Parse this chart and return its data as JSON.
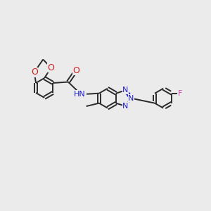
{
  "background_color": "#ebebeb",
  "bond_color": "#2a2a2a",
  "bond_width": 1.4,
  "atom_colors": {
    "N": "#2020cc",
    "O": "#cc2020",
    "F": "#cc44aa",
    "C": "#2a2a2a",
    "H": "#2a2a2a"
  },
  "font_size": 8,
  "fig_size": [
    3.0,
    3.0
  ],
  "dpi": 100
}
